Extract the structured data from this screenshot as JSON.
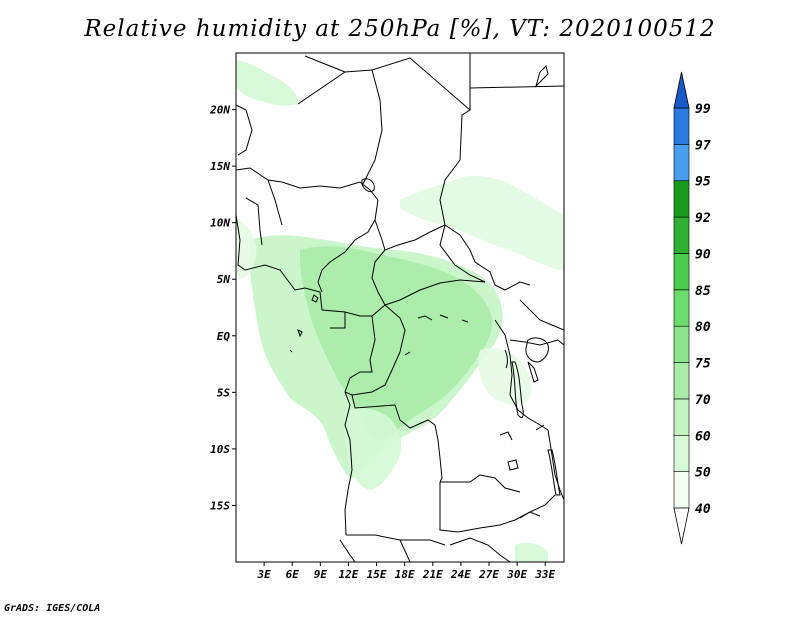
{
  "title": "Relative humidity at 250hPa [%], VT: 2020100512",
  "credit": "GrADS: IGES/COLA",
  "map": {
    "lon_range": [
      0,
      35
    ],
    "lat_range": [
      -20,
      25
    ],
    "lat_labels": [
      {
        "lat": 20,
        "text": "20N"
      },
      {
        "lat": 15,
        "text": "15N"
      },
      {
        "lat": 10,
        "text": "10N"
      },
      {
        "lat": 5,
        "text": "5N"
      },
      {
        "lat": 0,
        "text": "EQ"
      },
      {
        "lat": -5,
        "text": "5S"
      },
      {
        "lat": -10,
        "text": "10S"
      },
      {
        "lat": -15,
        "text": "15S"
      }
    ],
    "lon_labels": [
      {
        "lon": 3,
        "text": "3E"
      },
      {
        "lon": 6,
        "text": "6E"
      },
      {
        "lon": 9,
        "text": "9E"
      },
      {
        "lon": 12,
        "text": "12E"
      },
      {
        "lon": 15,
        "text": "15E"
      },
      {
        "lon": 18,
        "text": "18E"
      },
      {
        "lon": 21,
        "text": "21E"
      },
      {
        "lon": 24,
        "text": "24E"
      },
      {
        "lon": 27,
        "text": "27E"
      },
      {
        "lon": 30,
        "text": "30E"
      },
      {
        "lon": 33,
        "text": "33E"
      }
    ],
    "border_color": "#000000",
    "field_colors": [
      "#f0fff0",
      "#d4f8d4",
      "#b8f0b8",
      "#a0e8a0"
    ]
  },
  "colorbar": {
    "levels": [
      {
        "value": 40,
        "label": "40",
        "color": "#f0fff0"
      },
      {
        "value": 50,
        "label": "50",
        "color": "#d8f8d8"
      },
      {
        "value": 60,
        "label": "60",
        "color": "#c4f4c4"
      },
      {
        "value": 70,
        "label": "70",
        "color": "#a8eca8"
      },
      {
        "value": 75,
        "label": "75",
        "color": "#8ce48c"
      },
      {
        "value": 80,
        "label": "80",
        "color": "#6cdc6c"
      },
      {
        "value": 85,
        "label": "85",
        "color": "#4ccc4c"
      },
      {
        "value": 90,
        "label": "90",
        "color": "#30b030"
      },
      {
        "value": 92,
        "label": "92",
        "color": "#1a9a1a"
      },
      {
        "value": 95,
        "label": "95",
        "color": "#4a9ef0"
      },
      {
        "value": 97,
        "label": "97",
        "color": "#2a7ae0"
      },
      {
        "value": 99,
        "label": "99",
        "color": "#1a5ac8"
      }
    ],
    "top_arrow_color": "#1a5ac8",
    "bottom_arrow_color": "#ffffff"
  }
}
